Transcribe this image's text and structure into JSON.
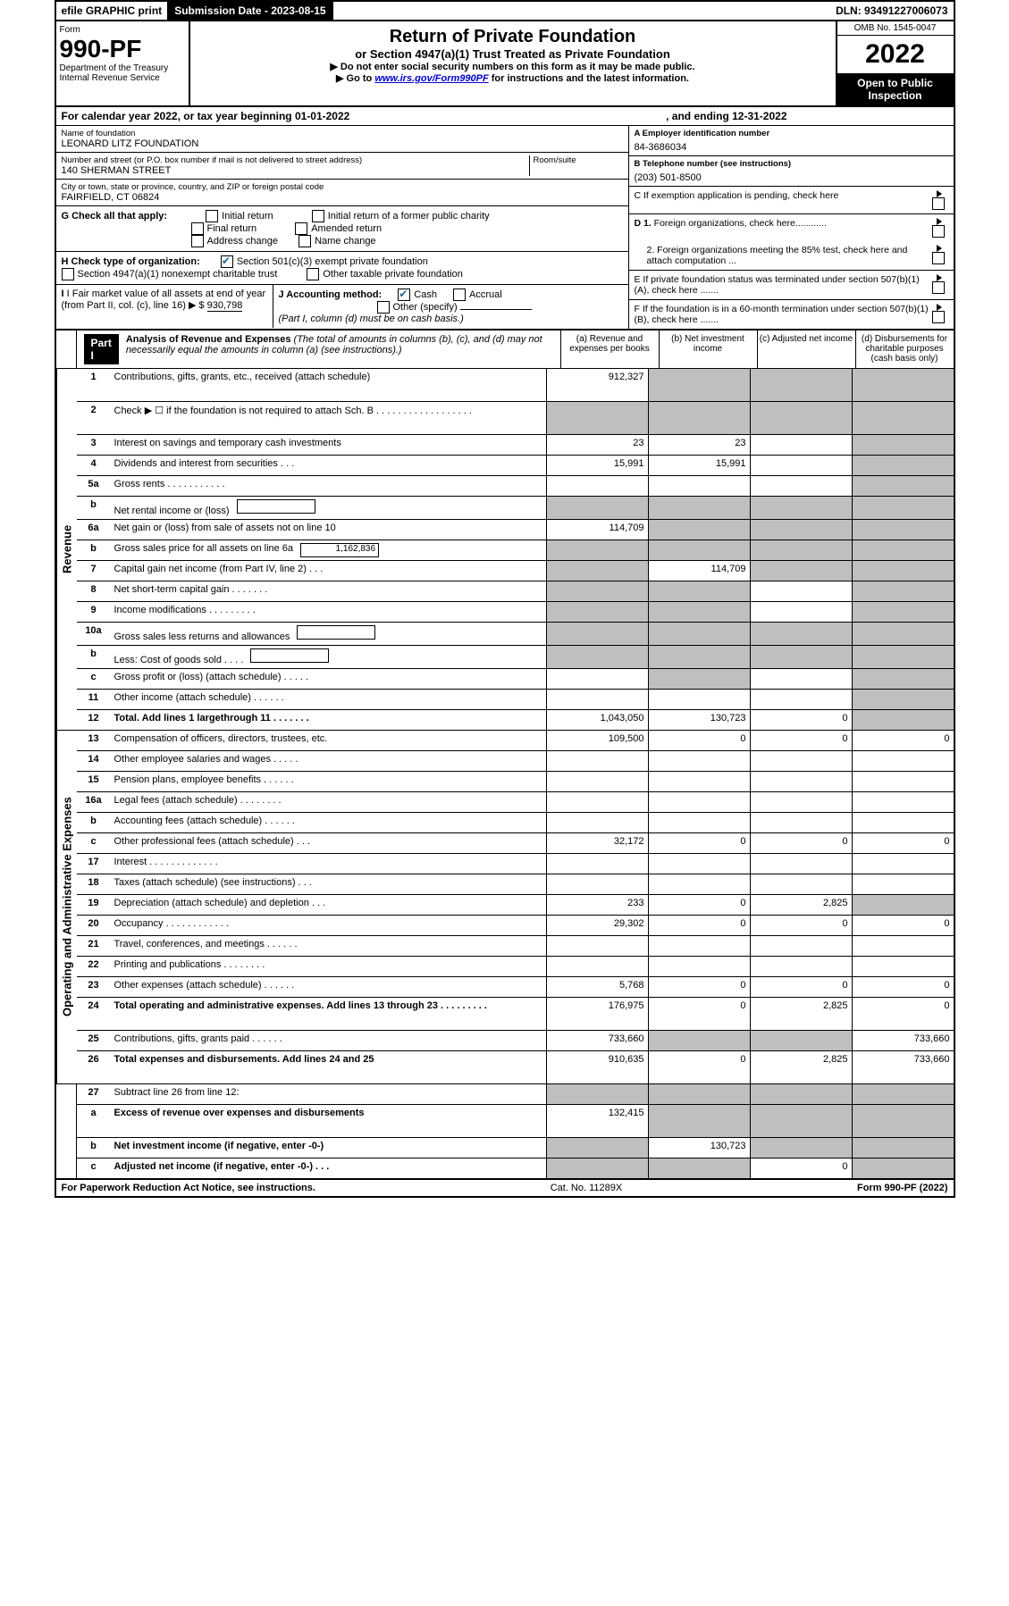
{
  "topbar": {
    "efile": "efile GRAPHIC print",
    "submission_label": "Submission Date - 2023-08-15",
    "dln": "DLN: 93491227006073"
  },
  "header": {
    "form_label": "Form",
    "form_number": "990-PF",
    "dept1": "Department of the Treasury",
    "dept2": "Internal Revenue Service",
    "title": "Return of Private Foundation",
    "subtitle": "or Section 4947(a)(1) Trust Treated as Private Foundation",
    "note1": "▶ Do not enter social security numbers on this form as it may be made public.",
    "note2_pre": "▶ Go to ",
    "note2_link": "www.irs.gov/Form990PF",
    "note2_post": " for instructions and the latest information.",
    "omb": "OMB No. 1545-0047",
    "year": "2022",
    "inspection": "Open to Public Inspection"
  },
  "calendar": {
    "text1": "For calendar year 2022, or tax year beginning 01-01-2022",
    "text2": ", and ending 12-31-2022"
  },
  "info": {
    "name_label": "Name of foundation",
    "name_value": "LEONARD LITZ FOUNDATION",
    "addr_label": "Number and street (or P.O. box number if mail is not delivered to street address)",
    "addr_value": "140 SHERMAN STREET",
    "room_label": "Room/suite",
    "city_label": "City or town, state or province, country, and ZIP or foreign postal code",
    "city_value": "FAIRFIELD, CT  06824",
    "a_label": "A Employer identification number",
    "a_value": "84-3686034",
    "b_label": "B Telephone number (see instructions)",
    "b_value": "(203) 501-8500",
    "c_label": "C If exemption application is pending, check here",
    "d1_label": "D 1. Foreign organizations, check here............",
    "d2_label": "2. Foreign organizations meeting the 85% test, check here and attach computation ...",
    "e_label": "E  If private foundation status was terminated under section 507(b)(1)(A), check here .......",
    "f_label": "F  If the foundation is in a 60-month termination under section 507(b)(1)(B), check here .......",
    "g_label": "G Check all that apply:",
    "g_initial": "Initial return",
    "g_initial_former": "Initial return of a former public charity",
    "g_final": "Final return",
    "g_amended": "Amended return",
    "g_address": "Address change",
    "g_name": "Name change",
    "h_label": "H Check type of organization:",
    "h_501": "Section 501(c)(3) exempt private foundation",
    "h_4947": "Section 4947(a)(1) nonexempt charitable trust",
    "h_other": "Other taxable private foundation",
    "i_label": "I Fair market value of all assets at end of year (from Part II, col. (c), line 16)",
    "i_arrow": "▶ $",
    "i_value": "930,798",
    "j_label": "J Accounting method:",
    "j_cash": "Cash",
    "j_accrual": "Accrual",
    "j_other": "Other (specify)",
    "j_note": "(Part I, column (d) must be on cash basis.)"
  },
  "part1": {
    "label": "Part I",
    "title": "Analysis of Revenue and Expenses",
    "title_note": " (The total of amounts in columns (b), (c), and (d) may not necessarily equal the amounts in column (a) (see instructions).)",
    "col_a": "(a) Revenue and expenses per books",
    "col_b": "(b) Net investment income",
    "col_c": "(c) Adjusted net income",
    "col_d": "(d) Disbursements for charitable purposes (cash basis only)"
  },
  "sections": {
    "revenue": "Revenue",
    "expenses": "Operating and Administrative Expenses"
  },
  "rows": [
    {
      "num": "1",
      "desc": "Contributions, gifts, grants, etc., received (attach schedule)",
      "a": "912,327",
      "b": "",
      "c": "",
      "d": "",
      "shade_b": true,
      "shade_c": true,
      "shade_d": true,
      "tall": true
    },
    {
      "num": "2",
      "desc": "Check ▶ ☐ if the foundation is not required to attach Sch. B  .  .  .  .  .  .  .  .  .  .  .  .  .  .  .  .  .  .",
      "a": "",
      "b": "",
      "c": "",
      "d": "",
      "shade_a": true,
      "shade_b": true,
      "shade_c": true,
      "shade_d": true,
      "tall": true
    },
    {
      "num": "3",
      "desc": "Interest on savings and temporary cash investments",
      "a": "23",
      "b": "23",
      "c": "",
      "d": "",
      "shade_d": true
    },
    {
      "num": "4",
      "desc": "Dividends and interest from securities   .   .   .",
      "a": "15,991",
      "b": "15,991",
      "c": "",
      "d": "",
      "shade_d": true
    },
    {
      "num": "5a",
      "desc": "Gross rents   .   .   .   .   .   .   .   .   .   .   .",
      "a": "",
      "b": "",
      "c": "",
      "d": "",
      "shade_d": true
    },
    {
      "num": "b",
      "desc": "Net rental income or (loss)",
      "a": "",
      "b": "",
      "c": "",
      "d": "",
      "shade_a": true,
      "shade_b": true,
      "shade_c": true,
      "shade_d": true,
      "has_box": true
    },
    {
      "num": "6a",
      "desc": "Net gain or (loss) from sale of assets not on line 10",
      "a": "114,709",
      "b": "",
      "c": "",
      "d": "",
      "shade_b": true,
      "shade_c": true,
      "shade_d": true
    },
    {
      "num": "b",
      "desc": "Gross sales price for all assets on line 6a",
      "a": "",
      "b": "",
      "c": "",
      "d": "",
      "shade_a": true,
      "shade_b": true,
      "shade_c": true,
      "shade_d": true,
      "box_val": "1,162,836",
      "has_box": true
    },
    {
      "num": "7",
      "desc": "Capital gain net income (from Part IV, line 2)   .   .   .",
      "a": "",
      "b": "114,709",
      "c": "",
      "d": "",
      "shade_a": true,
      "shade_c": true,
      "shade_d": true
    },
    {
      "num": "8",
      "desc": "Net short-term capital gain   .   .   .   .   .   .   .",
      "a": "",
      "b": "",
      "c": "",
      "d": "",
      "shade_a": true,
      "shade_b": true,
      "shade_d": true
    },
    {
      "num": "9",
      "desc": "Income modifications  .   .   .   .   .   .   .   .   .",
      "a": "",
      "b": "",
      "c": "",
      "d": "",
      "shade_a": true,
      "shade_b": true,
      "shade_d": true
    },
    {
      "num": "10a",
      "desc": "Gross sales less returns and allowances",
      "a": "",
      "b": "",
      "c": "",
      "d": "",
      "shade_a": true,
      "shade_b": true,
      "shade_c": true,
      "shade_d": true,
      "has_box": true
    },
    {
      "num": "b",
      "desc": "Less: Cost of goods sold   .   .   .   .",
      "a": "",
      "b": "",
      "c": "",
      "d": "",
      "shade_a": true,
      "shade_b": true,
      "shade_c": true,
      "shade_d": true,
      "has_box": true
    },
    {
      "num": "c",
      "desc": "Gross profit or (loss) (attach schedule)   .   .   .   .   .",
      "a": "",
      "b": "",
      "c": "",
      "d": "",
      "shade_b": true,
      "shade_d": true
    },
    {
      "num": "11",
      "desc": "Other income (attach schedule)   .   .   .   .   .   .",
      "a": "",
      "b": "",
      "c": "",
      "d": "",
      "shade_d": true
    },
    {
      "num": "12",
      "desc": "Total. Add lines 1 largethrough 11   .   .   .   .   .   .   .",
      "a": "1,043,050",
      "b": "130,723",
      "c": "0",
      "d": "",
      "shade_d": true,
      "bold": true
    }
  ],
  "exp_rows": [
    {
      "num": "13",
      "desc": "Compensation of officers, directors, trustees, etc.",
      "a": "109,500",
      "b": "0",
      "c": "0",
      "d": "0"
    },
    {
      "num": "14",
      "desc": "Other employee salaries and wages   .   .   .   .   .",
      "a": "",
      "b": "",
      "c": "",
      "d": ""
    },
    {
      "num": "15",
      "desc": "Pension plans, employee benefits   .   .   .   .   .   .",
      "a": "",
      "b": "",
      "c": "",
      "d": ""
    },
    {
      "num": "16a",
      "desc": "Legal fees (attach schedule)  .   .   .   .   .   .   .   .",
      "a": "",
      "b": "",
      "c": "",
      "d": ""
    },
    {
      "num": "b",
      "desc": "Accounting fees (attach schedule)  .   .   .   .   .   .",
      "a": "",
      "b": "",
      "c": "",
      "d": ""
    },
    {
      "num": "c",
      "desc": "Other professional fees (attach schedule)   .   .   .",
      "a": "32,172",
      "b": "0",
      "c": "0",
      "d": "0"
    },
    {
      "num": "17",
      "desc": "Interest  .   .   .   .   .   .   .   .   .   .   .   .   .",
      "a": "",
      "b": "",
      "c": "",
      "d": ""
    },
    {
      "num": "18",
      "desc": "Taxes (attach schedule) (see instructions)   .   .   .",
      "a": "",
      "b": "",
      "c": "",
      "d": ""
    },
    {
      "num": "19",
      "desc": "Depreciation (attach schedule) and depletion   .   .   .",
      "a": "233",
      "b": "0",
      "c": "2,825",
      "d": "",
      "shade_d": true
    },
    {
      "num": "20",
      "desc": "Occupancy  .   .   .   .   .   .   .   .   .   .   .   .",
      "a": "29,302",
      "b": "0",
      "c": "0",
      "d": "0"
    },
    {
      "num": "21",
      "desc": "Travel, conferences, and meetings  .   .   .   .   .   .",
      "a": "",
      "b": "",
      "c": "",
      "d": ""
    },
    {
      "num": "22",
      "desc": "Printing and publications  .   .   .   .   .   .   .   .",
      "a": "",
      "b": "",
      "c": "",
      "d": ""
    },
    {
      "num": "23",
      "desc": "Other expenses (attach schedule)  .   .   .   .   .   .",
      "a": "5,768",
      "b": "0",
      "c": "0",
      "d": "0"
    },
    {
      "num": "24",
      "desc": "Total operating and administrative expenses. Add lines 13 through 23   .   .   .   .   .   .   .   .   .",
      "a": "176,975",
      "b": "0",
      "c": "2,825",
      "d": "0",
      "bold": true,
      "tall": true
    },
    {
      "num": "25",
      "desc": "Contributions, gifts, grants paid   .   .   .   .   .   .",
      "a": "733,660",
      "b": "",
      "c": "",
      "d": "733,660",
      "shade_b": true,
      "shade_c": true
    },
    {
      "num": "26",
      "desc": "Total expenses and disbursements. Add lines 24 and 25",
      "a": "910,635",
      "b": "0",
      "c": "2,825",
      "d": "733,660",
      "bold": true,
      "tall": true
    }
  ],
  "bottom_rows": [
    {
      "num": "27",
      "desc": "Subtract line 26 from line 12:",
      "a": "",
      "b": "",
      "c": "",
      "d": "",
      "shade_a": true,
      "shade_b": true,
      "shade_c": true,
      "shade_d": true
    },
    {
      "num": "a",
      "desc": "Excess of revenue over expenses and disbursements",
      "a": "132,415",
      "b": "",
      "c": "",
      "d": "",
      "shade_b": true,
      "shade_c": true,
      "shade_d": true,
      "bold": true,
      "tall": true
    },
    {
      "num": "b",
      "desc": "Net investment income (if negative, enter -0-)",
      "a": "",
      "b": "130,723",
      "c": "",
      "d": "",
      "shade_a": true,
      "shade_c": true,
      "shade_d": true,
      "bold": true
    },
    {
      "num": "c",
      "desc": "Adjusted net income (if negative, enter -0-)   .   .   .",
      "a": "",
      "b": "",
      "c": "0",
      "d": "",
      "shade_a": true,
      "shade_b": true,
      "shade_d": true,
      "bold": true
    }
  ],
  "footer": {
    "left": "For Paperwork Reduction Act Notice, see instructions.",
    "center": "Cat. No. 11289X",
    "right": "Form 990-PF (2022)"
  }
}
